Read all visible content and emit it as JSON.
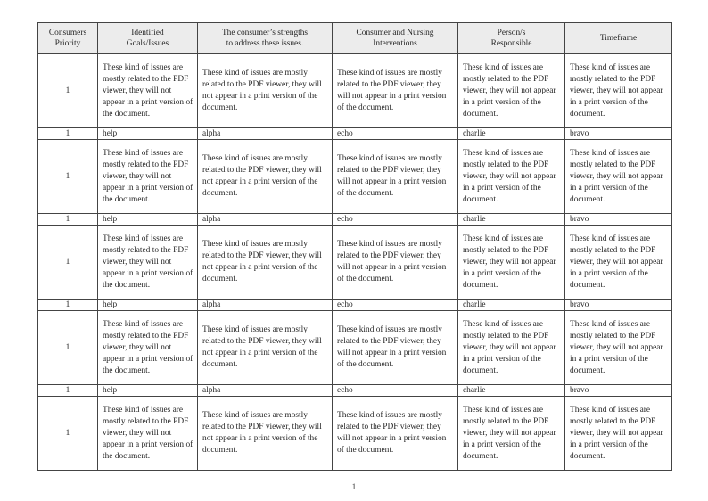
{
  "page": {
    "number": "1"
  },
  "colors": {
    "header_background": "#ececec",
    "border": "#444444",
    "text": "#262626"
  },
  "table": {
    "column_headers": [
      [
        "Consumers",
        "Priority"
      ],
      [
        "Identified",
        "Goals/Issues"
      ],
      [
        "The consumer’s strengths",
        "to address these issues."
      ],
      [
        "Consumer and Nursing",
        "Interventions"
      ],
      [
        "Person/s",
        "Responsible"
      ],
      [
        "Timeframe"
      ]
    ],
    "long_row": {
      "priority": "1",
      "cell_text": "These kind of issues are mostly related to the PDF viewer, they will not appear in a print version of the document."
    },
    "short_row": {
      "cells": [
        "1",
        "help",
        "alpha",
        "echo",
        "charlie",
        "bravo"
      ]
    },
    "row_sequence": [
      "long",
      "short",
      "long",
      "short",
      "long",
      "short",
      "long",
      "short",
      "long"
    ]
  }
}
